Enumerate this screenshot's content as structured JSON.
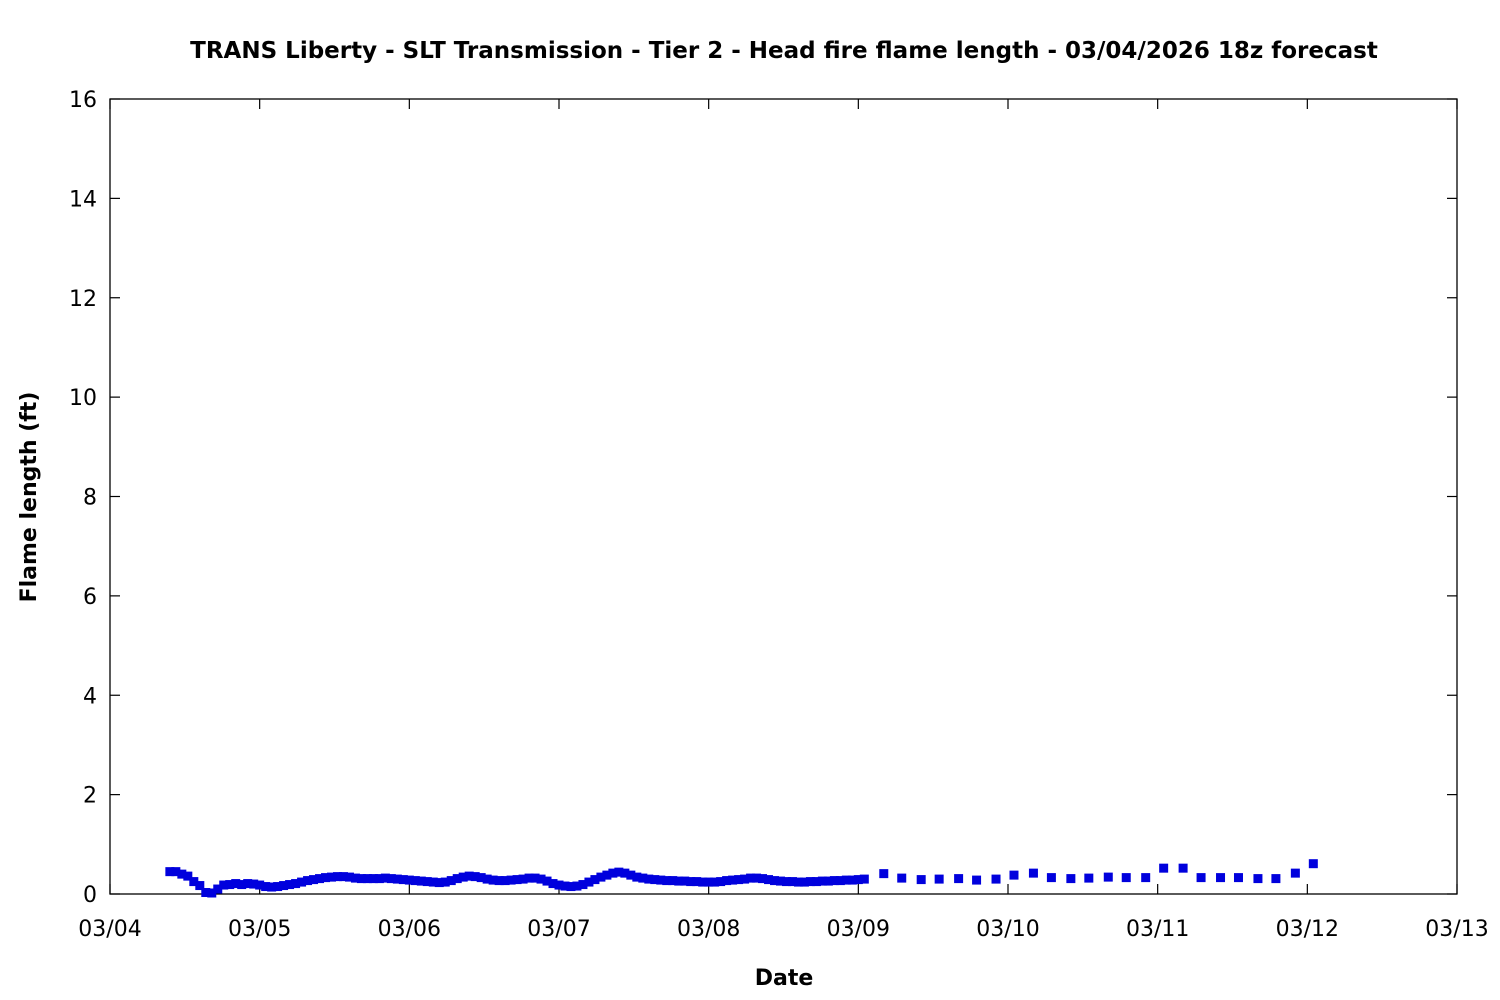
{
  "chart_data": {
    "type": "scatter",
    "title": "TRANS Liberty - SLT Transmission - Tier 2 - Head fire flame length - 03/04/2026 18z forecast",
    "xlabel": "Date",
    "ylabel": "Flame length (ft)",
    "xlim": [
      "03/04",
      "03/13"
    ],
    "ylim": [
      0,
      16
    ],
    "x_ticks": [
      "03/04",
      "03/05",
      "03/06",
      "03/07",
      "03/08",
      "03/09",
      "03/10",
      "03/11",
      "03/12",
      "03/13"
    ],
    "y_ticks": [
      0,
      2,
      4,
      6,
      8,
      10,
      12,
      14,
      16
    ],
    "grid": false,
    "marker_color": "#0000dd",
    "x_unit": "days since 03/04",
    "points": [
      [
        0.4,
        0.45
      ],
      [
        0.44,
        0.45
      ],
      [
        0.48,
        0.4
      ],
      [
        0.52,
        0.36
      ],
      [
        0.56,
        0.25
      ],
      [
        0.6,
        0.17
      ],
      [
        0.64,
        0.03
      ],
      [
        0.68,
        0.02
      ],
      [
        0.72,
        0.1
      ],
      [
        0.76,
        0.18
      ],
      [
        0.8,
        0.19
      ],
      [
        0.84,
        0.21
      ],
      [
        0.88,
        0.19
      ],
      [
        0.92,
        0.21
      ],
      [
        0.96,
        0.2
      ],
      [
        1.0,
        0.18
      ],
      [
        1.04,
        0.15
      ],
      [
        1.08,
        0.14
      ],
      [
        1.12,
        0.15
      ],
      [
        1.16,
        0.17
      ],
      [
        1.2,
        0.19
      ],
      [
        1.24,
        0.21
      ],
      [
        1.28,
        0.24
      ],
      [
        1.32,
        0.27
      ],
      [
        1.36,
        0.29
      ],
      [
        1.4,
        0.31
      ],
      [
        1.44,
        0.33
      ],
      [
        1.48,
        0.34
      ],
      [
        1.52,
        0.35
      ],
      [
        1.56,
        0.35
      ],
      [
        1.6,
        0.34
      ],
      [
        1.64,
        0.32
      ],
      [
        1.68,
        0.31
      ],
      [
        1.72,
        0.31
      ],
      [
        1.76,
        0.31
      ],
      [
        1.8,
        0.31
      ],
      [
        1.84,
        0.32
      ],
      [
        1.88,
        0.31
      ],
      [
        1.92,
        0.3
      ],
      [
        1.96,
        0.29
      ],
      [
        2.0,
        0.28
      ],
      [
        2.04,
        0.27
      ],
      [
        2.08,
        0.26
      ],
      [
        2.12,
        0.25
      ],
      [
        2.16,
        0.24
      ],
      [
        2.2,
        0.23
      ],
      [
        2.24,
        0.24
      ],
      [
        2.28,
        0.27
      ],
      [
        2.32,
        0.31
      ],
      [
        2.36,
        0.34
      ],
      [
        2.4,
        0.36
      ],
      [
        2.44,
        0.35
      ],
      [
        2.48,
        0.33
      ],
      [
        2.52,
        0.3
      ],
      [
        2.56,
        0.28
      ],
      [
        2.6,
        0.27
      ],
      [
        2.64,
        0.27
      ],
      [
        2.68,
        0.28
      ],
      [
        2.72,
        0.29
      ],
      [
        2.76,
        0.3
      ],
      [
        2.8,
        0.32
      ],
      [
        2.84,
        0.32
      ],
      [
        2.88,
        0.3
      ],
      [
        2.92,
        0.26
      ],
      [
        2.96,
        0.21
      ],
      [
        3.0,
        0.18
      ],
      [
        3.04,
        0.16
      ],
      [
        3.08,
        0.15
      ],
      [
        3.12,
        0.16
      ],
      [
        3.16,
        0.19
      ],
      [
        3.2,
        0.24
      ],
      [
        3.24,
        0.29
      ],
      [
        3.28,
        0.34
      ],
      [
        3.32,
        0.38
      ],
      [
        3.36,
        0.42
      ],
      [
        3.4,
        0.44
      ],
      [
        3.44,
        0.42
      ],
      [
        3.48,
        0.38
      ],
      [
        3.52,
        0.34
      ],
      [
        3.56,
        0.32
      ],
      [
        3.6,
        0.3
      ],
      [
        3.64,
        0.29
      ],
      [
        3.68,
        0.28
      ],
      [
        3.72,
        0.27
      ],
      [
        3.76,
        0.27
      ],
      [
        3.8,
        0.26
      ],
      [
        3.84,
        0.26
      ],
      [
        3.88,
        0.25
      ],
      [
        3.92,
        0.25
      ],
      [
        3.96,
        0.24
      ],
      [
        4.0,
        0.24
      ],
      [
        4.04,
        0.24
      ],
      [
        4.08,
        0.25
      ],
      [
        4.12,
        0.27
      ],
      [
        4.16,
        0.28
      ],
      [
        4.2,
        0.29
      ],
      [
        4.24,
        0.3
      ],
      [
        4.28,
        0.32
      ],
      [
        4.32,
        0.32
      ],
      [
        4.36,
        0.31
      ],
      [
        4.4,
        0.29
      ],
      [
        4.44,
        0.27
      ],
      [
        4.48,
        0.26
      ],
      [
        4.52,
        0.25
      ],
      [
        4.56,
        0.25
      ],
      [
        4.6,
        0.24
      ],
      [
        4.64,
        0.24
      ],
      [
        4.68,
        0.25
      ],
      [
        4.72,
        0.25
      ],
      [
        4.76,
        0.26
      ],
      [
        4.8,
        0.26
      ],
      [
        4.84,
        0.27
      ],
      [
        4.88,
        0.27
      ],
      [
        4.92,
        0.28
      ],
      [
        4.96,
        0.28
      ],
      [
        5.0,
        0.29
      ],
      [
        5.04,
        0.3
      ],
      [
        5.17,
        0.41
      ],
      [
        5.29,
        0.32
      ],
      [
        5.42,
        0.29
      ],
      [
        5.54,
        0.3
      ],
      [
        5.67,
        0.31
      ],
      [
        5.79,
        0.28
      ],
      [
        5.92,
        0.3
      ],
      [
        6.04,
        0.38
      ],
      [
        6.17,
        0.42
      ],
      [
        6.29,
        0.33
      ],
      [
        6.42,
        0.31
      ],
      [
        6.54,
        0.32
      ],
      [
        6.67,
        0.34
      ],
      [
        6.79,
        0.33
      ],
      [
        6.92,
        0.33
      ],
      [
        7.04,
        0.52
      ],
      [
        7.17,
        0.52
      ],
      [
        7.29,
        0.33
      ],
      [
        7.42,
        0.33
      ],
      [
        7.54,
        0.33
      ],
      [
        7.67,
        0.31
      ],
      [
        7.79,
        0.31
      ],
      [
        7.92,
        0.42
      ],
      [
        8.04,
        0.61
      ]
    ]
  }
}
